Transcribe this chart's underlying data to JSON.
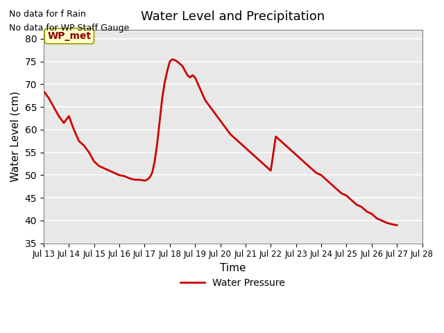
{
  "title": "Water Level and Precipitation",
  "xlabel": "Time",
  "ylabel": "Water Level (cm)",
  "ylim": [
    35,
    82
  ],
  "yticks": [
    35,
    40,
    45,
    50,
    55,
    60,
    65,
    70,
    75,
    80
  ],
  "bg_color": "#e8e8e8",
  "line_color": "#cc0000",
  "line_width": 2.0,
  "no_data_text1": "No data for f Rain",
  "no_data_text2": "No data for WP Staff Gauge",
  "wp_met_label": "WP_met",
  "legend_label": "Water Pressure",
  "x_tick_labels": [
    "Jul 13",
    "Jul 14",
    "Jul 15",
    "Jul 16",
    "Jul 17",
    "Jul 18",
    "Jul 19",
    "Jul 20",
    "Jul 21",
    "Jul 22",
    "Jul 23",
    "Jul 24",
    "Jul 25",
    "Jul 26",
    "Jul 27",
    "Jul 28"
  ],
  "water_pressure_x": [
    13,
    13.2,
    13.4,
    13.6,
    13.8,
    14.0,
    14.2,
    14.4,
    14.6,
    14.8,
    15.0,
    15.2,
    15.4,
    15.6,
    15.8,
    16.0,
    16.2,
    16.4,
    16.6,
    16.8,
    17.0,
    17.1,
    17.2,
    17.3,
    17.4,
    17.5,
    17.6,
    17.7,
    17.8,
    17.9,
    18.0,
    18.1,
    18.2,
    18.3,
    18.4,
    18.5,
    18.6,
    18.7,
    18.8,
    18.9,
    19.0,
    19.2,
    19.4,
    19.6,
    19.8,
    20.0,
    20.2,
    20.4,
    20.6,
    20.8,
    21.0,
    21.2,
    21.4,
    21.6,
    21.8,
    22.0,
    22.2,
    22.4,
    22.6,
    22.8,
    23.0,
    23.2,
    23.4,
    23.6,
    23.8,
    24.0,
    24.2,
    24.4,
    24.6,
    24.8,
    25.0,
    25.2,
    25.4,
    25.6,
    25.8,
    26.0,
    26.2,
    26.4,
    26.6,
    26.8,
    27.0
  ],
  "water_pressure_y": [
    68.5,
    67.0,
    65.0,
    63.0,
    61.5,
    63.0,
    60.0,
    57.5,
    56.5,
    55.0,
    53.0,
    52.0,
    51.5,
    51.0,
    50.5,
    50.0,
    49.8,
    49.3,
    49.0,
    49.0,
    48.8,
    49.0,
    49.5,
    50.5,
    53.0,
    57.0,
    62.0,
    67.0,
    70.5,
    73.0,
    75.0,
    75.5,
    75.3,
    75.0,
    74.5,
    74.0,
    73.0,
    72.0,
    71.5,
    72.0,
    71.5,
    69.0,
    66.5,
    65.0,
    63.5,
    62.0,
    60.5,
    59.0,
    58.0,
    57.0,
    56.0,
    55.0,
    54.0,
    53.0,
    52.0,
    51.0,
    58.5,
    57.5,
    56.5,
    55.5,
    54.5,
    53.5,
    52.5,
    51.5,
    50.5,
    50.0,
    49.0,
    48.0,
    47.0,
    46.0,
    45.5,
    44.5,
    43.5,
    43.0,
    42.0,
    41.5,
    40.5,
    40.0,
    39.5,
    39.2,
    39.0
  ]
}
